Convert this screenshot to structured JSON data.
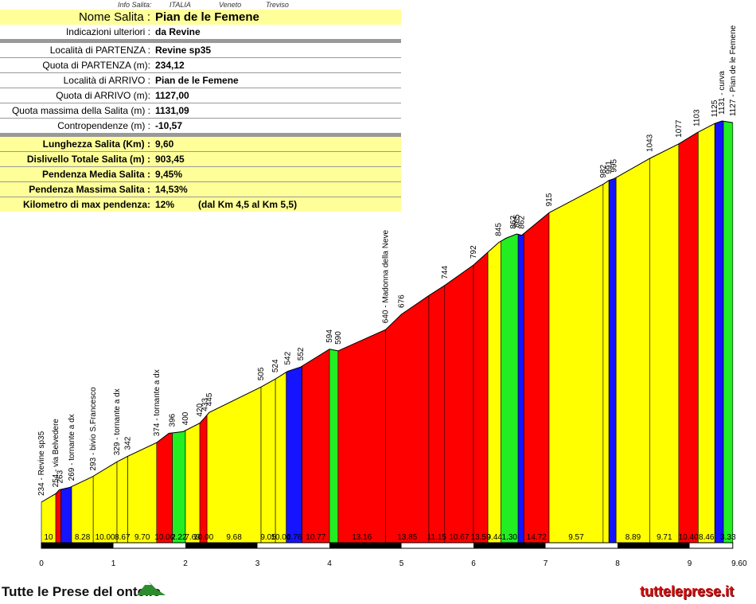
{
  "header": {
    "label": "Info Salita:",
    "country": "ITALIA",
    "region": "Veneto",
    "province": "Treviso"
  },
  "info": {
    "title_label": "Nome Salita :",
    "title_value": "Pian de le Femene",
    "rows": [
      {
        "label": "Indicazioni ulteriori :",
        "value": "da Revine"
      },
      {
        "label": "Località di PARTENZA :",
        "value": "Revine sp35"
      },
      {
        "label": "Quota di PARTENZA (m):",
        "value": "234,12"
      },
      {
        "label": "Località di ARRIVO :",
        "value": "Pian de le Femene"
      },
      {
        "label": "Quota di ARRIVO (m):",
        "value": "1127,00"
      },
      {
        "label": "Quota massima della Salita (m) :",
        "value": "1131,09"
      },
      {
        "label": "Contropendenze (m) :",
        "value": "-10,57"
      }
    ],
    "stats": [
      {
        "label": "Lunghezza Salita (Km) :",
        "value": "9,60"
      },
      {
        "label": "Dislivello Totale Salita (m) :",
        "value": "903,45"
      },
      {
        "label": "Pendenza Media Salita :",
        "value": "9,45%"
      },
      {
        "label": "Pendenza Massima Salita :",
        "value": "14,53%"
      },
      {
        "label": "Kilometro di max pendenza:",
        "value": "12%",
        "note": "(dal Km 4,5 al Km 5,5)"
      }
    ]
  },
  "footer": {
    "logo_text": "Tutte le Prese del  ontello",
    "site": "tutteleprese.it"
  },
  "colors": {
    "yellow": "#ffff00",
    "red": "#ff0000",
    "green": "#22ee22",
    "blue": "#1414ff"
  },
  "chart_data": {
    "type": "area",
    "xlabel": "",
    "ylabel": "",
    "xlim": [
      0,
      9.7
    ],
    "ylim": [
      200,
      1150
    ],
    "x_ticks": [
      "0",
      "1",
      "2",
      "3",
      "4",
      "5",
      "6",
      "7",
      "8",
      "9",
      "9.60"
    ],
    "profile": [
      [
        0.0,
        234
      ],
      [
        0.2,
        254
      ],
      [
        0.25,
        263
      ],
      [
        0.4,
        269
      ],
      [
        0.7,
        293
      ],
      [
        1.05,
        329
      ],
      [
        1.2,
        342
      ],
      [
        1.6,
        374
      ],
      [
        1.77,
        396
      ],
      [
        1.97,
        400
      ],
      [
        2.2,
        420
      ],
      [
        2.27,
        433
      ],
      [
        2.33,
        445
      ],
      [
        3.05,
        505
      ],
      [
        3.25,
        524
      ],
      [
        3.42,
        542
      ],
      [
        3.6,
        552
      ],
      [
        4.0,
        594
      ],
      [
        4.12,
        590
      ],
      [
        4.78,
        640
      ],
      [
        5.0,
        676
      ],
      [
        5.38,
        720
      ],
      [
        5.6,
        744
      ],
      [
        6.0,
        792
      ],
      [
        6.35,
        845
      ],
      [
        6.45,
        855
      ],
      [
        6.6,
        865
      ],
      [
        6.67,
        862
      ],
      [
        7.05,
        915
      ],
      [
        7.8,
        982
      ],
      [
        7.88,
        991
      ],
      [
        7.95,
        995
      ],
      [
        8.45,
        1043
      ],
      [
        8.85,
        1077
      ],
      [
        9.1,
        1103
      ],
      [
        9.35,
        1125
      ],
      [
        9.45,
        1131
      ],
      [
        9.6,
        1127
      ]
    ],
    "segments": [
      {
        "x0": 0.0,
        "x1": 0.2,
        "slope": "10",
        "c": "yellow"
      },
      {
        "x0": 0.2,
        "x1": 0.27,
        "slope": "",
        "c": "red"
      },
      {
        "x0": 0.27,
        "x1": 0.42,
        "slope": "",
        "c": "blue"
      },
      {
        "x0": 0.42,
        "x1": 0.72,
        "slope": "8.28",
        "c": "yellow"
      },
      {
        "x0": 0.72,
        "x1": 1.05,
        "slope": "10.00",
        "c": "yellow"
      },
      {
        "x0": 1.05,
        "x1": 1.2,
        "slope": "8.67",
        "c": "yellow"
      },
      {
        "x0": 1.2,
        "x1": 1.6,
        "slope": "9.70",
        "c": "yellow"
      },
      {
        "x0": 1.6,
        "x1": 1.82,
        "slope": "10.00",
        "c": "red"
      },
      {
        "x0": 1.82,
        "x1": 2.0,
        "slope": "2.22",
        "c": "green"
      },
      {
        "x0": 2.0,
        "x1": 2.2,
        "slope": "7.69",
        "c": "yellow"
      },
      {
        "x0": 2.2,
        "x1": 2.3,
        "slope": "10.00",
        "c": "red"
      },
      {
        "x0": 2.3,
        "x1": 3.05,
        "slope": "9.68",
        "c": "yellow"
      },
      {
        "x0": 3.05,
        "x1": 3.25,
        "slope": "9.05",
        "c": "yellow"
      },
      {
        "x0": 3.25,
        "x1": 3.4,
        "slope": "10.00",
        "c": "yellow"
      },
      {
        "x0": 3.4,
        "x1": 3.62,
        "slope": "4.76",
        "c": "blue"
      },
      {
        "x0": 3.62,
        "x1": 4.0,
        "slope": "10.77",
        "c": "red"
      },
      {
        "x0": 4.0,
        "x1": 4.12,
        "slope": "",
        "c": "green"
      },
      {
        "x0": 4.12,
        "x1": 4.78,
        "slope": "13.16",
        "c": "red"
      },
      {
        "x0": 4.78,
        "x1": 5.38,
        "slope": "13.85",
        "c": "red"
      },
      {
        "x0": 5.38,
        "x1": 5.6,
        "slope": "11.15",
        "c": "red"
      },
      {
        "x0": 5.6,
        "x1": 6.0,
        "slope": "10.67",
        "c": "red"
      },
      {
        "x0": 6.0,
        "x1": 6.2,
        "slope": "13.59",
        "c": "red"
      },
      {
        "x0": 6.2,
        "x1": 6.38,
        "slope": "9.44",
        "c": "yellow"
      },
      {
        "x0": 6.38,
        "x1": 6.62,
        "slope": "1.30",
        "c": "green"
      },
      {
        "x0": 6.62,
        "x1": 6.7,
        "slope": "",
        "c": "blue"
      },
      {
        "x0": 6.7,
        "x1": 7.05,
        "slope": "14.72",
        "c": "red"
      },
      {
        "x0": 7.05,
        "x1": 7.8,
        "slope": "9.57",
        "c": "yellow"
      },
      {
        "x0": 7.8,
        "x1": 7.88,
        "slope": "",
        "c": "yellow"
      },
      {
        "x0": 7.88,
        "x1": 7.98,
        "slope": "",
        "c": "blue"
      },
      {
        "x0": 7.98,
        "x1": 8.45,
        "slope": "8.89",
        "c": "yellow"
      },
      {
        "x0": 8.45,
        "x1": 8.85,
        "slope": "9.71",
        "c": "yellow"
      },
      {
        "x0": 8.85,
        "x1": 9.12,
        "slope": "10.40",
        "c": "red"
      },
      {
        "x0": 9.12,
        "x1": 9.35,
        "slope": "8.46",
        "c": "yellow"
      },
      {
        "x0": 9.35,
        "x1": 9.47,
        "slope": "",
        "c": "blue"
      },
      {
        "x0": 9.47,
        "x1": 9.6,
        "slope": "3.33",
        "c": "green"
      }
    ],
    "point_labels": [
      {
        "x": 0.0,
        "y": 234,
        "text": "234 - Revine sp35"
      },
      {
        "x": 0.2,
        "y": 254,
        "text": "254 - via Belvedere"
      },
      {
        "x": 0.26,
        "y": 263,
        "text": "263"
      },
      {
        "x": 0.42,
        "y": 269,
        "text": "269 - tornante a dx"
      },
      {
        "x": 0.72,
        "y": 293,
        "text": "293 - bivio S.Francesco"
      },
      {
        "x": 1.05,
        "y": 329,
        "text": "329 - tornante a dx"
      },
      {
        "x": 1.2,
        "y": 342,
        "text": "342"
      },
      {
        "x": 1.6,
        "y": 374,
        "text": "374 - tornante a dx"
      },
      {
        "x": 1.82,
        "y": 396,
        "text": "396"
      },
      {
        "x": 2.0,
        "y": 400,
        "text": "400"
      },
      {
        "x": 2.2,
        "y": 420,
        "text": "420"
      },
      {
        "x": 2.27,
        "y": 433,
        "text": "433"
      },
      {
        "x": 2.33,
        "y": 445,
        "text": "445"
      },
      {
        "x": 3.05,
        "y": 505,
        "text": "505"
      },
      {
        "x": 3.25,
        "y": 524,
        "text": "524"
      },
      {
        "x": 3.42,
        "y": 542,
        "text": "542"
      },
      {
        "x": 3.6,
        "y": 552,
        "text": "552"
      },
      {
        "x": 4.0,
        "y": 594,
        "text": "594"
      },
      {
        "x": 4.12,
        "y": 590,
        "text": "590"
      },
      {
        "x": 4.78,
        "y": 640,
        "text": "640 - Madonna della Neve"
      },
      {
        "x": 5.0,
        "y": 676,
        "text": "676"
      },
      {
        "x": 5.6,
        "y": 744,
        "text": "744"
      },
      {
        "x": 6.0,
        "y": 792,
        "text": "792"
      },
      {
        "x": 6.35,
        "y": 845,
        "text": "845"
      },
      {
        "x": 6.55,
        "y": 862,
        "text": "862"
      },
      {
        "x": 6.6,
        "y": 865,
        "text": "865"
      },
      {
        "x": 6.67,
        "y": 862,
        "text": "862"
      },
      {
        "x": 7.05,
        "y": 915,
        "text": "915"
      },
      {
        "x": 7.8,
        "y": 982,
        "text": "982"
      },
      {
        "x": 7.88,
        "y": 991,
        "text": "991"
      },
      {
        "x": 7.95,
        "y": 995,
        "text": "995"
      },
      {
        "x": 8.45,
        "y": 1043,
        "text": "1043"
      },
      {
        "x": 8.85,
        "y": 1077,
        "text": "1077"
      },
      {
        "x": 9.1,
        "y": 1103,
        "text": "1103"
      },
      {
        "x": 9.35,
        "y": 1125,
        "text": "1125"
      },
      {
        "x": 9.45,
        "y": 1131,
        "text": "1131 - curva"
      },
      {
        "x": 9.6,
        "y": 1127,
        "text": "1127 - Pian de le Femene"
      }
    ]
  }
}
